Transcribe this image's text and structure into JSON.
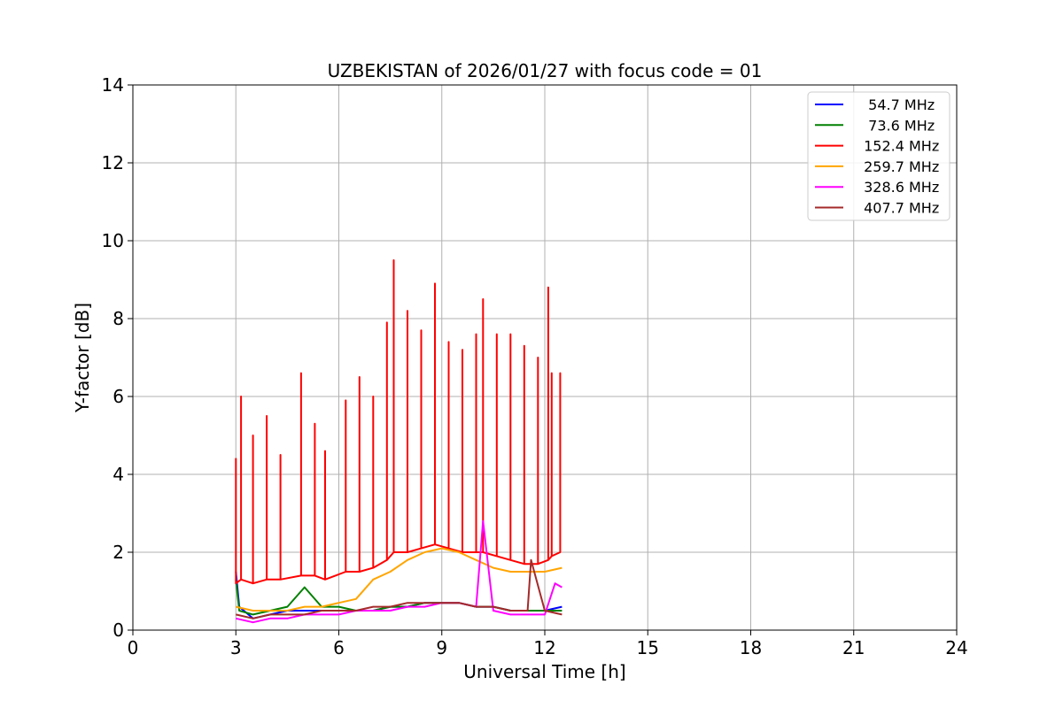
{
  "chart_data": {
    "type": "line",
    "title": "UZBEKISTAN of 2026/01/27 with focus code = 01",
    "xlabel": "Universal Time [h]",
    "ylabel": "Y-factor [dB]",
    "xlim": [
      0,
      24
    ],
    "ylim": [
      0,
      14
    ],
    "xticks": [
      0,
      3,
      6,
      9,
      12,
      15,
      18,
      21,
      24
    ],
    "yticks": [
      0,
      2,
      4,
      6,
      8,
      10,
      12,
      14
    ],
    "grid": true,
    "legend_position": "top-right",
    "series": [
      {
        "name": "  54.7 MHz",
        "color": "#0000ff",
        "x": [
          3.0,
          3.1,
          3.5,
          4.0,
          4.5,
          5.0,
          5.5,
          6.0,
          6.5,
          7.0,
          7.5,
          8.0,
          8.5,
          9.0,
          9.5,
          10.0,
          10.5,
          11.0,
          11.5,
          12.0,
          12.5
        ],
        "y": [
          1.5,
          0.6,
          0.3,
          0.4,
          0.5,
          0.5,
          0.5,
          0.5,
          0.5,
          0.5,
          0.6,
          0.6,
          0.7,
          0.7,
          0.7,
          0.6,
          0.6,
          0.5,
          0.5,
          0.5,
          0.6
        ]
      },
      {
        "name": "  73.6 MHz",
        "color": "#008000",
        "x": [
          3.0,
          3.1,
          3.5,
          4.0,
          4.5,
          5.0,
          5.5,
          6.0,
          6.5,
          7.0,
          7.5,
          8.0,
          8.5,
          9.0,
          9.5,
          10.0,
          10.5,
          11.0,
          11.5,
          12.0,
          12.5
        ],
        "y": [
          1.3,
          0.5,
          0.4,
          0.5,
          0.6,
          1.1,
          0.6,
          0.6,
          0.5,
          0.5,
          0.6,
          0.6,
          0.7,
          0.7,
          0.7,
          0.6,
          0.6,
          0.5,
          0.5,
          0.5,
          0.5
        ]
      },
      {
        "name": " 152.4 MHz",
        "color": "#ff0000",
        "x": [
          3.0,
          3.15,
          3.5,
          3.9,
          4.3,
          4.9,
          5.3,
          5.6,
          6.2,
          6.6,
          7.0,
          7.4,
          7.6,
          8.0,
          8.4,
          8.8,
          9.2,
          9.6,
          10.0,
          10.2,
          10.6,
          11.0,
          11.4,
          11.8,
          12.1,
          12.2,
          12.45
        ],
        "y": [
          4.4,
          6.0,
          5.0,
          5.5,
          4.5,
          6.6,
          5.3,
          4.6,
          5.9,
          6.5,
          6.0,
          7.9,
          9.5,
          8.2,
          7.7,
          8.9,
          7.4,
          7.2,
          7.6,
          8.5,
          7.6,
          7.6,
          7.3,
          7.0,
          8.8,
          6.6,
          6.6
        ],
        "baseline": [
          1.2,
          1.3,
          1.2,
          1.3,
          1.3,
          1.4,
          1.4,
          1.3,
          1.5,
          1.5,
          1.6,
          1.8,
          2.0,
          2.0,
          2.1,
          2.2,
          2.1,
          2.0,
          2.0,
          2.0,
          1.9,
          1.8,
          1.7,
          1.7,
          1.8,
          1.9,
          2.0
        ]
      },
      {
        "name": " 259.7 MHz",
        "color": "#ffa500",
        "x": [
          3.0,
          3.5,
          4.0,
          4.5,
          5.0,
          5.5,
          6.0,
          6.5,
          7.0,
          7.5,
          8.0,
          8.5,
          9.0,
          9.5,
          10.0,
          10.5,
          11.0,
          11.5,
          12.0,
          12.5
        ],
        "y": [
          0.6,
          0.5,
          0.5,
          0.5,
          0.6,
          0.6,
          0.7,
          0.8,
          1.3,
          1.5,
          1.8,
          2.0,
          2.1,
          2.0,
          1.8,
          1.6,
          1.5,
          1.5,
          1.5,
          1.6
        ]
      },
      {
        "name": " 328.6 MHz",
        "color": "#ff00ff",
        "x": [
          3.0,
          3.5,
          4.0,
          4.5,
          5.0,
          5.5,
          6.0,
          6.5,
          7.0,
          7.5,
          8.0,
          8.5,
          9.0,
          9.5,
          10.0,
          10.2,
          10.5,
          11.0,
          11.5,
          12.0,
          12.3,
          12.5
        ],
        "y": [
          0.3,
          0.2,
          0.3,
          0.3,
          0.4,
          0.4,
          0.4,
          0.5,
          0.5,
          0.5,
          0.6,
          0.6,
          0.7,
          0.7,
          0.6,
          2.8,
          0.5,
          0.4,
          0.4,
          0.4,
          1.2,
          1.1
        ]
      },
      {
        "name": " 407.7 MHz",
        "color": "#a52a2a",
        "x": [
          3.0,
          3.5,
          4.0,
          4.5,
          5.0,
          5.5,
          6.0,
          6.5,
          7.0,
          7.5,
          8.0,
          8.5,
          9.0,
          9.5,
          10.0,
          10.5,
          11.0,
          11.5,
          11.6,
          12.0,
          12.5
        ],
        "y": [
          0.4,
          0.3,
          0.4,
          0.4,
          0.4,
          0.5,
          0.5,
          0.5,
          0.6,
          0.6,
          0.7,
          0.7,
          0.7,
          0.7,
          0.6,
          0.6,
          0.5,
          0.5,
          1.8,
          0.5,
          0.4
        ]
      }
    ]
  }
}
